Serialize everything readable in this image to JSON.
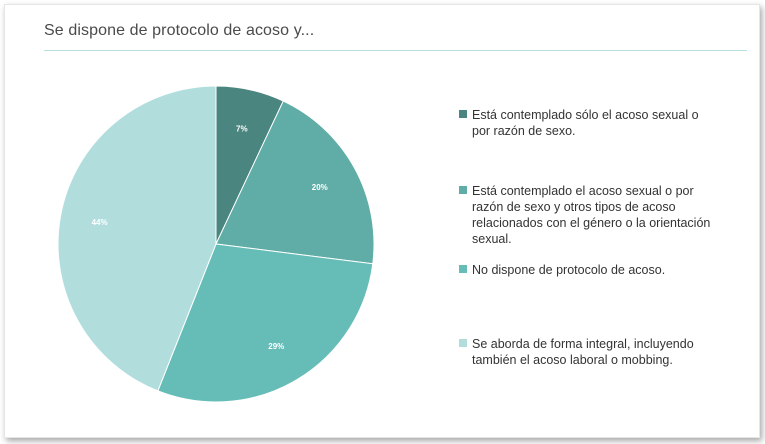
{
  "title": "Se dispone de protocolo de acoso y...",
  "chart_data": {
    "type": "pie",
    "start_angle_deg": 0,
    "direction": "clockwise",
    "legend_position": "right",
    "slices": [
      {
        "label": "Está contemplado sólo el acoso sexual o por razón de sexo.",
        "value": 7,
        "display": "7%",
        "color": "#4a8580"
      },
      {
        "label": "Está contemplado el acoso sexual o por razón de sexo y otros tipos de acoso relacionados con el género o la orientación sexual.",
        "value": 20,
        "display": "20%",
        "color": "#5fada6"
      },
      {
        "label": "No dispone de protocolo de acoso.",
        "value": 29,
        "display": "29%",
        "color": "#66bdb7"
      },
      {
        "label": "Se aborda de forma integral, incluyendo también el acoso laboral o mobbing.",
        "value": 44,
        "display": "44%",
        "color": "#b1dedd"
      }
    ]
  }
}
